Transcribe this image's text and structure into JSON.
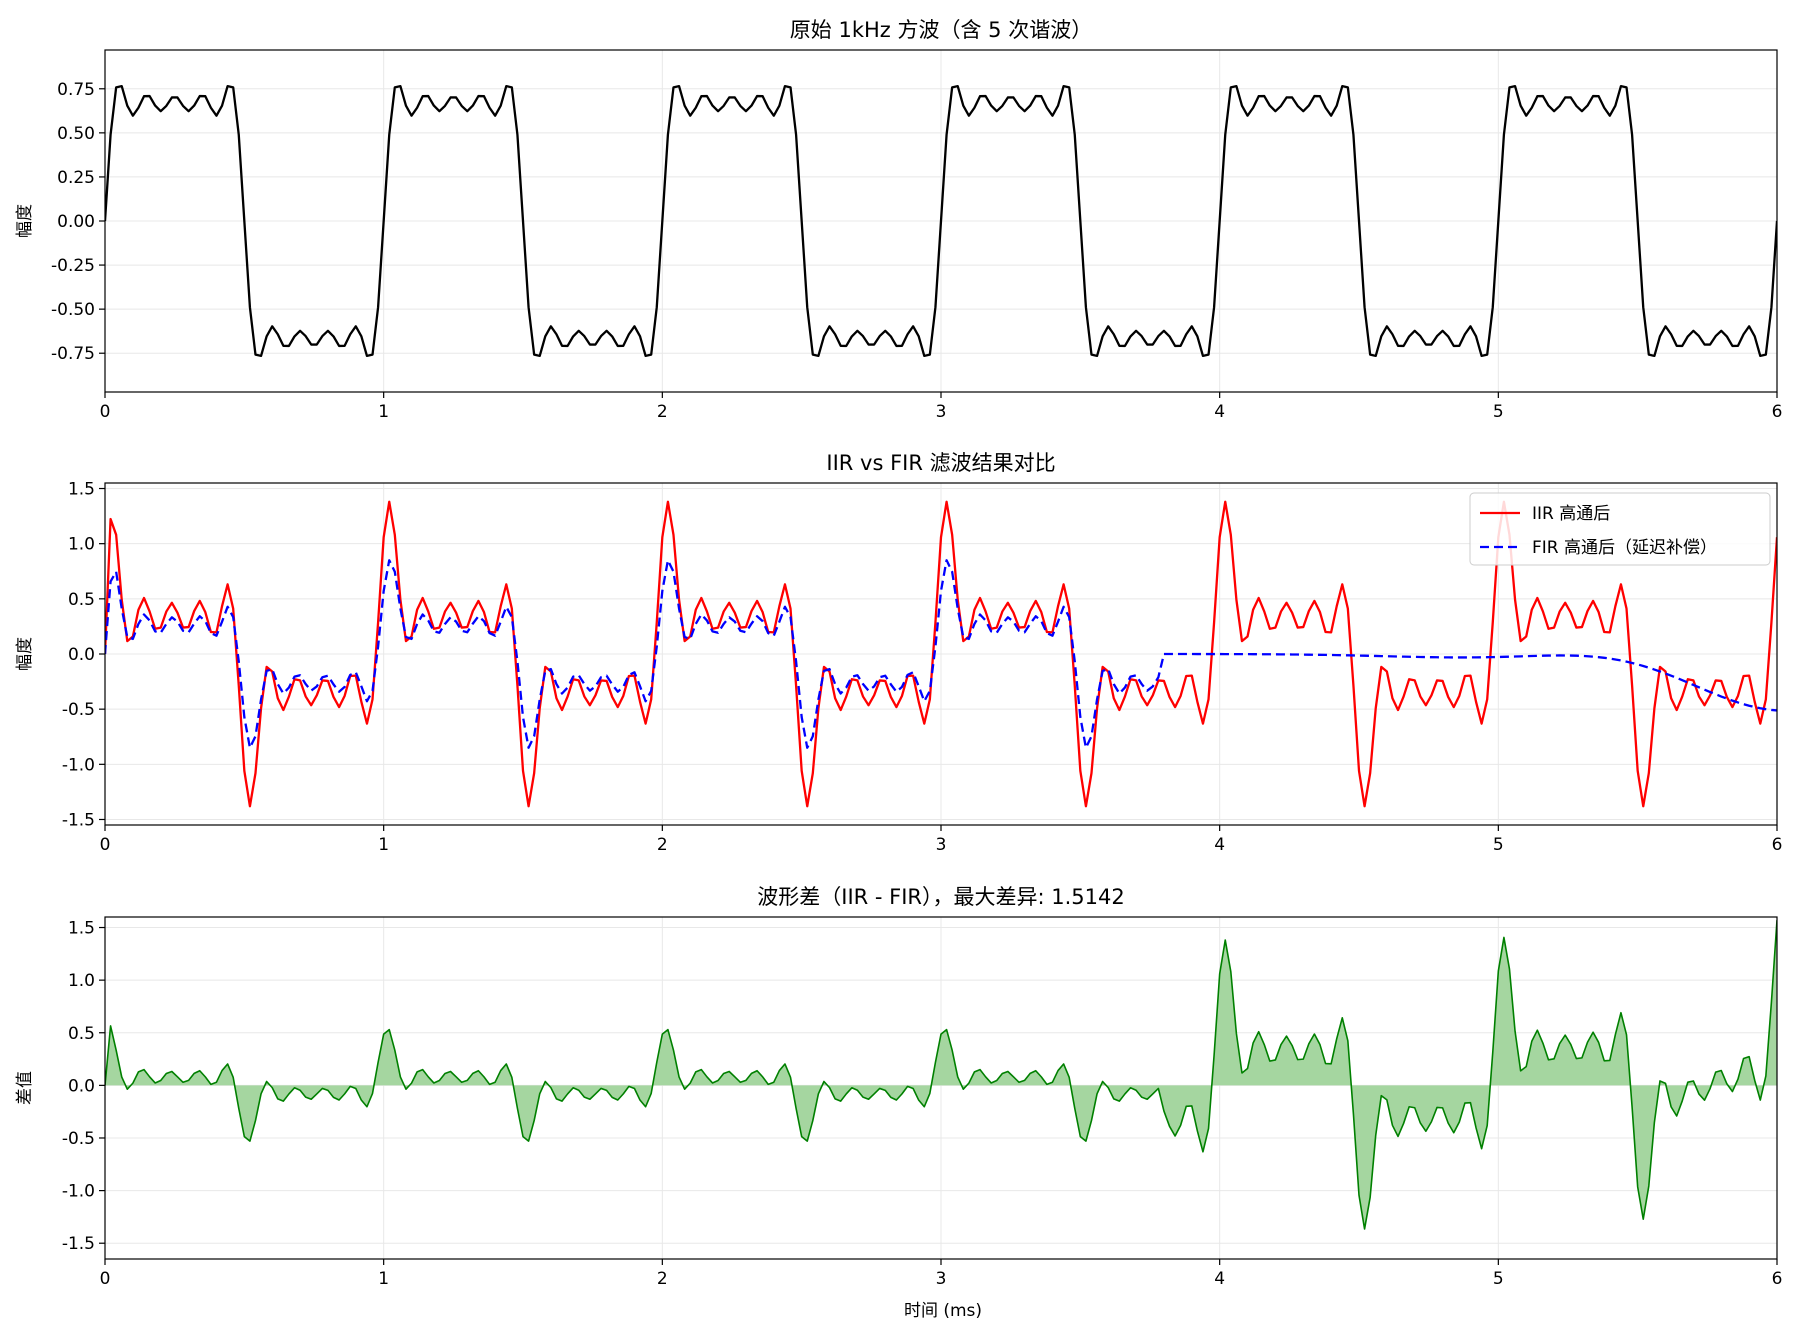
{
  "figure": {
    "xlabel": "时间 (ms)",
    "colors": {
      "square": "#000000",
      "iir": "#ff0000",
      "fir": "#0000ff",
      "diff_line": "#008000",
      "diff_fill": "#a5d6a0",
      "grid": "#e8e8e8"
    }
  },
  "chart_data": [
    {
      "type": "line",
      "title": "原始 1kHz 方波（含 5 次谐波）",
      "ylabel": "幅度",
      "xlim": [
        0,
        6
      ],
      "ylim": [
        -0.97,
        0.97
      ],
      "xticks": [
        "0",
        "1",
        "2",
        "3",
        "4",
        "5",
        "6"
      ],
      "yticks": [
        "0.75",
        "0.50",
        "0.25",
        "0.00",
        "-0.25",
        "-0.50",
        "-0.75"
      ],
      "ytick_values": [
        0.75,
        0.5,
        0.25,
        0.0,
        -0.25,
        -0.5,
        -0.75
      ],
      "grid": true,
      "series": [
        {
          "signal": "square_wave_5_harmonics",
          "frequency_khz": 1,
          "harmonics": [
            1,
            3,
            5,
            7,
            9
          ],
          "amplitude": 0.9,
          "style": "solid",
          "color": "#000000"
        }
      ]
    },
    {
      "type": "line",
      "title": "IIR vs FIR 滤波结果对比",
      "ylabel": "幅度",
      "xlim": [
        0,
        6
      ],
      "ylim": [
        -1.55,
        1.55
      ],
      "xticks": [
        "0",
        "1",
        "2",
        "3",
        "4",
        "5",
        "6"
      ],
      "yticks": [
        "1.5",
        "1.0",
        "0.5",
        "0.0",
        "-0.5",
        "-1.0",
        "-1.5"
      ],
      "ytick_values": [
        1.5,
        1.0,
        0.5,
        0.0,
        -0.5,
        -1.0,
        -1.5
      ],
      "grid": true,
      "legend_position": "top-right",
      "series": [
        {
          "name": "IIR 高通后",
          "style": "solid",
          "color": "#ff0000"
        },
        {
          "name": "FIR 高通后（延迟补偿）",
          "style": "dashed",
          "color": "#0000ff",
          "flat_from_x": 3.8
        }
      ]
    },
    {
      "type": "area",
      "title": "波形差（IIR - FIR），最大差异: 1.5142",
      "ylabel": "差值",
      "xlabel": "时间 (ms)",
      "xlim": [
        0,
        6
      ],
      "ylim": [
        -1.65,
        1.6
      ],
      "xticks": [
        "0",
        "1",
        "2",
        "3",
        "4",
        "5",
        "6"
      ],
      "yticks": [
        "1.5",
        "1.0",
        "0.5",
        "0.0",
        "-0.5",
        "-1.0",
        "-1.5"
      ],
      "ytick_values": [
        1.5,
        1.0,
        0.5,
        0.0,
        -0.5,
        -1.0,
        -1.5
      ],
      "grid": true,
      "max_difference": 1.5142,
      "series": [
        {
          "signal": "iir_minus_fir",
          "color": "#008000",
          "fill": "#a5d6a0"
        }
      ]
    }
  ]
}
